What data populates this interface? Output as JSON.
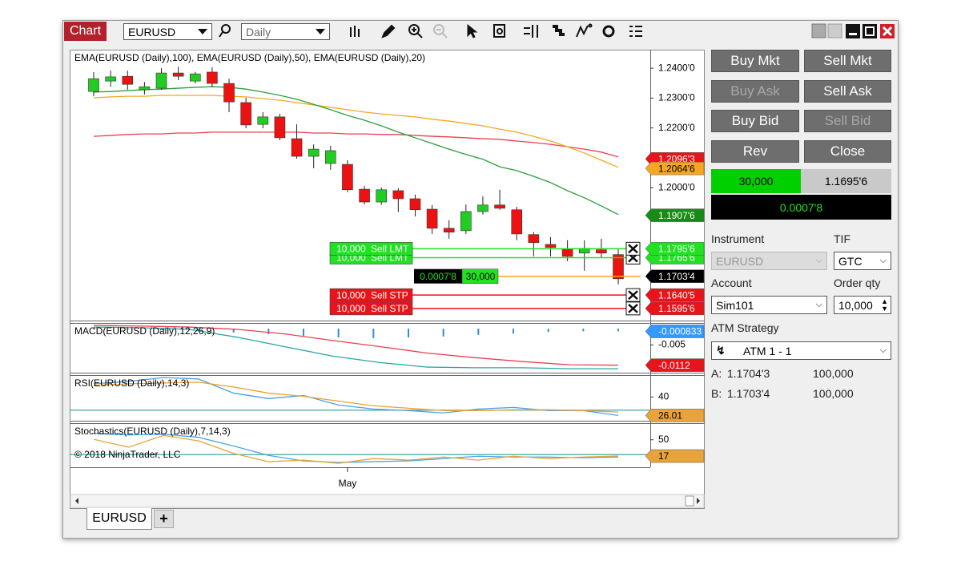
{
  "toolbar": {
    "title": "Chart",
    "instrument": "EURUSD",
    "interval": "Daily"
  },
  "chart_data": [
    {
      "type": "candlestick",
      "title": "EMA(EURUSD (Daily),100), EMA(EURUSD (Daily),50), EMA(EURUSD (Daily),20)",
      "categories": [
        null,
        null,
        null,
        null,
        null,
        null,
        null,
        null,
        null,
        null,
        null,
        null,
        null,
        null,
        null,
        "May",
        null,
        null,
        null,
        null,
        null,
        null,
        null,
        null,
        null,
        null,
        null,
        null,
        null,
        null,
        null,
        null
      ],
      "open": [
        1.2322,
        1.2357,
        1.2373,
        1.2328,
        1.2333,
        1.2384,
        1.2357,
        1.2387,
        1.2349,
        1.2285,
        1.2212,
        1.2237,
        1.2164,
        1.2105,
        1.2081,
        1.2078,
        1.1995,
        1.1952,
        1.199,
        1.1963,
        1.1928,
        1.1864,
        1.1856,
        1.192,
        1.1942,
        1.1926,
        1.1843,
        1.181,
        1.1794,
        1.1781,
        1.1792,
        1.1776
      ],
      "high": [
        1.2387,
        1.2392,
        1.2392,
        1.2354,
        1.24,
        1.2405,
        1.2387,
        1.2403,
        1.2365,
        1.2301,
        1.2253,
        1.2247,
        1.2212,
        1.2145,
        1.214,
        1.2092,
        1.2006,
        1.2001,
        1.1998,
        1.1977,
        1.1942,
        1.1891,
        1.1944,
        1.1971,
        1.1993,
        1.1936,
        1.1851,
        1.1835,
        1.1824,
        1.1824,
        1.1829,
        1.1797
      ],
      "low": [
        1.2306,
        1.2338,
        1.2328,
        1.2312,
        1.2328,
        1.236,
        1.2349,
        1.2338,
        1.2253,
        1.2199,
        1.2199,
        1.2159,
        1.2097,
        1.2065,
        1.206,
        1.1985,
        1.1944,
        1.1942,
        1.1918,
        1.1904,
        1.1845,
        1.1829,
        1.1845,
        1.191,
        1.1926,
        1.1824,
        1.177,
        1.177,
        1.1754,
        1.1722,
        1.1765,
        1.1676
      ],
      "close": [
        1.2365,
        1.2371,
        1.2346,
        1.2338,
        1.2384,
        1.2373,
        1.2381,
        1.2349,
        1.2287,
        1.221,
        1.2237,
        1.2167,
        1.2105,
        1.2129,
        1.2124,
        1.1993,
        1.1952,
        1.1993,
        1.1963,
        1.1926,
        1.1864,
        1.1851,
        1.192,
        1.1942,
        1.1931,
        1.1845,
        1.1816,
        1.18,
        1.177,
        1.1797,
        1.1781,
        1.1695
      ],
      "up_color": "#22cc22",
      "down_color": "#ee1111",
      "lines": [
        {
          "color": "#e8414f",
          "values": [
            1.2172,
            1.2175,
            1.2178,
            1.218,
            1.218,
            1.2183,
            1.2183,
            1.2186,
            1.2186,
            1.2186,
            1.2186,
            1.2186,
            1.2186,
            1.2183,
            1.2183,
            1.218,
            1.218,
            1.2178,
            1.2178,
            1.2175,
            1.2172,
            1.217,
            1.2167,
            1.2164,
            1.2162,
            1.2156,
            1.2151,
            1.2145,
            1.2137,
            1.2129,
            1.2119,
            1.2103
          ]
        },
        {
          "color": "#f5a623",
          "values": [
            1.2301,
            1.2304,
            1.2306,
            1.2306,
            1.2309,
            1.2309,
            1.2309,
            1.2309,
            1.2306,
            1.2304,
            1.2298,
            1.2293,
            1.2285,
            1.2277,
            1.2269,
            1.2261,
            1.2253,
            1.2247,
            1.2242,
            1.2237,
            1.2229,
            1.2223,
            1.2215,
            1.2207,
            1.2196,
            1.2186,
            1.2172,
            1.2156,
            1.2137,
            1.2116,
            1.2092,
            1.2068
          ]
        },
        {
          "color": "#2e9e3e",
          "values": [
            1.232,
            1.2322,
            1.2325,
            1.2328,
            1.233,
            1.2333,
            1.2336,
            1.2338,
            1.2336,
            1.233,
            1.232,
            1.2309,
            1.2296,
            1.2279,
            1.2261,
            1.2242,
            1.2226,
            1.2207,
            1.2186,
            1.2167,
            1.2148,
            1.2129,
            1.2111,
            1.2095,
            1.207,
            1.2057,
            1.2038,
            1.2017,
            1.199,
            1.1966,
            1.1939,
            1.191
          ]
        }
      ],
      "ylim": [
        1.1555,
        1.2462
      ],
      "yticks": [
        {
          "value": 1.24,
          "label": "1.2400'0"
        },
        {
          "value": 1.23,
          "label": "1.2300'0"
        },
        {
          "value": 1.22,
          "label": "1.2200'0"
        },
        {
          "value": 1.2,
          "label": "1.2000'0"
        }
      ],
      "markers": [
        {
          "value": 1.20963,
          "label": "1.2096'3",
          "color": "#e8141c"
        },
        {
          "value": 1.20646,
          "label": "1.2064'6",
          "color": "#f5a623"
        },
        {
          "value": 1.19076,
          "label": "1.1907'6",
          "color": "#188a18"
        }
      ],
      "orders": [
        {
          "quantity": "10,000",
          "side": "Sell LMT",
          "price": {
            "value": 1.17956,
            "label": "1.1795'6"
          },
          "color": "#22e022"
        },
        {
          "quantity": "10,000",
          "side": "Sell LMT",
          "price": {
            "value": 1.17656,
            "label": "1.1765'6"
          },
          "color": "#22e022"
        },
        {
          "quantity": "10,000",
          "side": "Sell STP",
          "price": {
            "value": 1.16405,
            "label": "1.1640'5"
          },
          "color": "#e8141c"
        },
        {
          "quantity": "10,000",
          "side": "Sell STP",
          "price": {
            "value": 1.15956,
            "label": "1.1595'6"
          },
          "color": "#e8141c"
        }
      ],
      "position": {
        "pnl": "0.0007'8",
        "quantity": "30,000",
        "price": {
          "value": 1.17034,
          "label": "1.1703'4"
        },
        "color": "#000000",
        "pnl_color": "#22e022",
        "quantity_color": "#22e022",
        "line_color": "#f5a623"
      }
    },
    {
      "type": "line",
      "title": "MACD(EURUSD (Daily),12,26,9)",
      "series": [
        {
          "color": "#2aa7a0",
          "values": [
            0.0005,
            0.0003,
            -0.0002,
            -0.0026,
            -0.0055,
            -0.0084,
            -0.0104,
            -0.0118,
            -0.012,
            -0.012,
            -0.0123,
            -0.0123
          ]
        },
        {
          "color": "#e8414f",
          "values": [
            0.001,
            0.0008,
            0.0005,
            -0.0002,
            -0.0016,
            -0.0036,
            -0.0055,
            -0.0075,
            -0.0089,
            -0.0101,
            -0.0111,
            -0.0112
          ]
        }
      ],
      "histogram": {
        "color": "#2a8fe0",
        "values": [
          -0.0002,
          -0.0002,
          -0.0005,
          -0.0007,
          -0.0012,
          -0.0017,
          -0.0022,
          -0.0027,
          -0.0029,
          -0.0027,
          -0.0024,
          -0.0019,
          -0.0015,
          -0.001,
          -0.0008,
          -0.0008
        ]
      },
      "ylim": [
        -0.0135,
        0.0015
      ],
      "yticks": [
        -0.005
      ],
      "markers": [
        {
          "value": -0.000833,
          "color": "#3399ff"
        },
        {
          "value": -0.0112,
          "color": "#e8141c"
        }
      ]
    },
    {
      "type": "line",
      "title": "RSI(EURUSD (Daily),14,3)",
      "series": [
        {
          "color": "#4aa3e8",
          "values": [
            50.0,
            51.8,
            54.8,
            53.6,
            42.9,
            38.8,
            41.1,
            33.9,
            30.9,
            29.7,
            27.9,
            30.9,
            32.1,
            29.7,
            29.7,
            26.0
          ]
        },
        {
          "color": "#f0a030",
          "values": [
            48.8,
            50.0,
            50.6,
            51.2,
            47.6,
            42.9,
            40.5,
            36.9,
            33.3,
            31.5,
            29.7,
            29.7,
            30.3,
            30.3,
            29.7,
            28.6
          ]
        }
      ],
      "levels": [
        30
      ],
      "level_color": "#2a9d9d",
      "ylim": [
        22,
        56
      ],
      "yticks": [
        40
      ],
      "markers": [
        {
          "value": 26.01,
          "color": "#e8a33a"
        }
      ]
    },
    {
      "type": "line",
      "title": "Stochastics(EURUSD (Daily),7,14,3)",
      "annotation": "© 2018 NinjaTrader, LLC",
      "series": [
        {
          "color": "#4aa3e8",
          "values": [
            62.9,
            59.7,
            61.3,
            54.9,
            37.4,
            18.3,
            7.2,
            4.0,
            5.6,
            7.2,
            11.9,
            16.7,
            15.1,
            15.1,
            13.5,
            15.1
          ]
        },
        {
          "color": "#e8a33a",
          "values": [
            50.9,
            35.0,
            58.9,
            47.8,
            22.3,
            5.6,
            8.8,
            2.4,
            11.9,
            8.8,
            15.1,
            8.8,
            16.7,
            11.9,
            15.1,
            17.0
          ]
        }
      ],
      "levels": [
        20
      ],
      "level_color": "#2a9d9d",
      "ylim": [
        -4,
        82
      ],
      "yticks": [
        50
      ],
      "markers": [
        {
          "value": 17,
          "color": "#e8a33a"
        }
      ]
    }
  ],
  "tabs": [
    "EURUSD"
  ],
  "add_tab": "+",
  "order_entry": {
    "buttons": [
      {
        "label": "Buy Mkt",
        "enabled": true
      },
      {
        "label": "Sell Mkt",
        "enabled": true
      },
      {
        "label": "Buy Ask",
        "enabled": false
      },
      {
        "label": "Sell Ask",
        "enabled": true
      },
      {
        "label": "Buy Bid",
        "enabled": true
      },
      {
        "label": "Sell Bid",
        "enabled": false
      },
      {
        "label": "Rev",
        "enabled": true
      },
      {
        "label": "Close",
        "enabled": true
      }
    ],
    "position": {
      "quantity": "30,000",
      "average_price": "1.1695'6",
      "pnl": "0.0007'8"
    },
    "instrument_label": "Instrument",
    "instrument": "EURUSD",
    "tif_label": "TIF",
    "tif": "GTC",
    "account_label": "Account",
    "account": "Sim101",
    "quantity_label": "Order qty",
    "quantity": "10,000",
    "atm_label": "ATM Strategy",
    "atm": "ATM 1 - 1",
    "ask": {
      "label": "A:",
      "price": "1.1704'3",
      "size": "100,000"
    },
    "bid": {
      "label": "B:",
      "price": "1.1703'4",
      "size": "100,000"
    }
  }
}
